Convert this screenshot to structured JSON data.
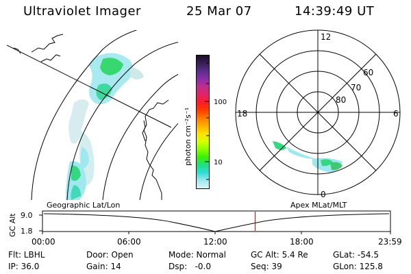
{
  "header": {
    "instrument": "Ultraviolet Imager",
    "date": "25 Mar 07",
    "time": "14:39:49 UT"
  },
  "colorbar": {
    "label": "photon cm⁻²s⁻¹",
    "ticks": [
      "100",
      "10"
    ],
    "colors": [
      "#ff0000",
      "#aa0000",
      "#ffd000"
    ],
    "gradient": [
      "#1c0f2b",
      "#3a1f55",
      "#5b2d8a",
      "#8a2ea8",
      "#bf2e8c",
      "#e0246a",
      "#ff1a2a",
      "#ff3c00",
      "#ff7a00",
      "#ffb000",
      "#ffe000",
      "#d8ff00",
      "#8aff00",
      "#3cf000",
      "#20e080",
      "#30dcd8",
      "#9ee8ee",
      "#dcf4f6"
    ]
  },
  "polar_plot": {
    "mlt_labels": [
      "12",
      "18",
      "6",
      "0"
    ],
    "lat_labels": [
      "60",
      "70",
      "80"
    ]
  },
  "timeline": {
    "left_label": "Geographic Lat/Lon",
    "right_label": "Apex MLat/MLT",
    "axis_label": "GC Alt",
    "y_ticks": [
      "9.0",
      "1.8"
    ],
    "x_ticks": [
      "00:00",
      "06:00",
      "12:00",
      "18:00",
      "23:59"
    ],
    "current_time_fraction": 0.611,
    "marker_color": "#c00000"
  },
  "info": {
    "filter": "Flt: LBHL",
    "ip": "IP: 36.0",
    "door": "Door: Open",
    "gain": "Gain: 14",
    "mode": "Mode: Normal",
    "dsp": "Dsp:   -0.0",
    "gc_alt": "GC Alt: 5.4 Re",
    "seq": "Seq: 39",
    "glat": "GLat: -54.5",
    "glon": "GLon: 125.8"
  }
}
